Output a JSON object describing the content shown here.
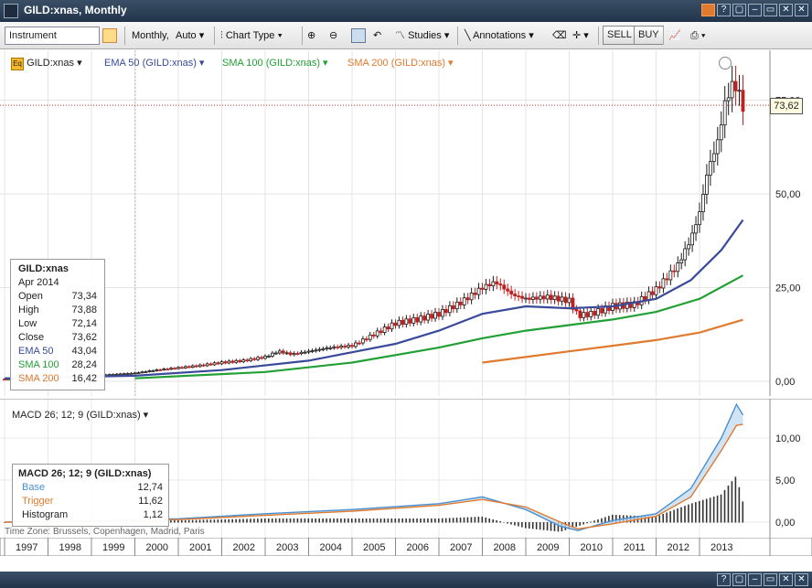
{
  "window": {
    "title": "GILD:xnas, Monthly"
  },
  "toolbar": {
    "instrument_placeholder": "Instrument",
    "period": "Monthly,",
    "scale": "Auto",
    "chart_type": "Chart Type",
    "studies": "Studies",
    "annotations": "Annotations",
    "sell": "SELL",
    "buy": "BUY"
  },
  "legend": {
    "symbol": "GILD:xnas",
    "ema": "EMA 50 (GILD:xnas)",
    "sma100": "SMA 100 (GILD:xnas)",
    "sma200": "SMA 200 (GILD:xnas)"
  },
  "info": {
    "title": "GILD:xnas",
    "date": "Apr 2014",
    "rows": [
      {
        "label": "Open",
        "value": "73,34"
      },
      {
        "label": "High",
        "value": "73,88"
      },
      {
        "label": "Low",
        "value": "72,14"
      },
      {
        "label": "Close",
        "value": "73,62"
      },
      {
        "label": "EMA 50",
        "value": "43,04"
      },
      {
        "label": "SMA 100",
        "value": "28,24"
      },
      {
        "label": "SMA 200",
        "value": "16,42"
      }
    ]
  },
  "price_tag": "73,62",
  "macd": {
    "label": "MACD 26; 12; 9 (GILD:xnas)",
    "title": "MACD 26; 12; 9 (GILD:xnas)",
    "rows": [
      {
        "label": "Base",
        "value": "12,74"
      },
      {
        "label": "Trigger",
        "value": "11,62"
      },
      {
        "label": "Histogram",
        "value": "1,12"
      }
    ]
  },
  "timezone": "Time Zone: Brussels, Copenhagen, Madrid, Paris",
  "colors": {
    "ema": "#3a4a9a",
    "sma100": "#22a035",
    "sma200": "#e07a2e",
    "base": "#4a8fd0",
    "trigger": "#e07a2e",
    "up": "#1a1a1a",
    "down": "#c02020"
  },
  "chart_data": {
    "type": "candlestick",
    "years": [
      "1997",
      "1998",
      "1999",
      "2000",
      "2001",
      "2002",
      "2003",
      "2004",
      "2005",
      "2006",
      "2007",
      "2008",
      "2009",
      "2010",
      "2011",
      "2012",
      "2013"
    ],
    "y_ticks": [
      "75,00",
      "50,00",
      "25,00",
      "0,00"
    ],
    "y_tick_values": [
      75,
      50,
      25,
      0
    ],
    "macd_ticks": [
      "10,00",
      "5,00",
      "0,00"
    ],
    "macd_tick_values": [
      10,
      5,
      0
    ],
    "price_points": [
      [
        1997.0,
        0.6
      ],
      [
        1998.0,
        1.0
      ],
      [
        1999.0,
        1.5
      ],
      [
        2000.0,
        2.2
      ],
      [
        2000.5,
        3.0
      ],
      [
        2001.0,
        3.6
      ],
      [
        2001.5,
        4.2
      ],
      [
        2002.0,
        5.0
      ],
      [
        2002.5,
        5.5
      ],
      [
        2003.0,
        6.5
      ],
      [
        2003.3,
        8.0
      ],
      [
        2003.6,
        7.2
      ],
      [
        2004.0,
        8.0
      ],
      [
        2004.5,
        9.0
      ],
      [
        2005.0,
        9.5
      ],
      [
        2005.5,
        12.5
      ],
      [
        2006.0,
        15.5
      ],
      [
        2006.5,
        16.5
      ],
      [
        2007.0,
        18.0
      ],
      [
        2007.5,
        21.0
      ],
      [
        2008.0,
        25.0
      ],
      [
        2008.3,
        26.5
      ],
      [
        2008.7,
        23.0
      ],
      [
        2009.0,
        22.0
      ],
      [
        2009.5,
        22.5
      ],
      [
        2010.0,
        21.5
      ],
      [
        2010.2,
        17.5
      ],
      [
        2010.5,
        18.0
      ],
      [
        2011.0,
        20.0
      ],
      [
        2011.5,
        20.5
      ],
      [
        2012.0,
        24.5
      ],
      [
        2012.5,
        31.0
      ],
      [
        2012.8,
        38.0
      ],
      [
        2013.0,
        45.0
      ],
      [
        2013.2,
        57.0
      ],
      [
        2013.4,
        63.0
      ],
      [
        2013.6,
        75.0
      ],
      [
        2013.8,
        80.0
      ],
      [
        2013.95,
        75.0
      ],
      [
        2014.0,
        73.62
      ]
    ],
    "ema50": [
      [
        1997.0,
        0.8
      ],
      [
        2000.0,
        1.5
      ],
      [
        2002.0,
        3.0
      ],
      [
        2004.0,
        5.5
      ],
      [
        2006.0,
        10.0
      ],
      [
        2007.0,
        13.5
      ],
      [
        2008.0,
        18.0
      ],
      [
        2009.0,
        20.0
      ],
      [
        2010.0,
        19.5
      ],
      [
        2011.0,
        20.0
      ],
      [
        2012.0,
        22.0
      ],
      [
        2012.8,
        27.0
      ],
      [
        2013.5,
        35.0
      ],
      [
        2014.0,
        43.04
      ]
    ],
    "sma100": [
      [
        2000.0,
        0.8
      ],
      [
        2003.0,
        2.5
      ],
      [
        2005.0,
        5.0
      ],
      [
        2007.0,
        9.0
      ],
      [
        2008.0,
        11.5
      ],
      [
        2009.0,
        13.5
      ],
      [
        2010.0,
        15.0
      ],
      [
        2011.0,
        16.5
      ],
      [
        2012.0,
        18.5
      ],
      [
        2013.0,
        22.0
      ],
      [
        2014.0,
        28.24
      ]
    ],
    "sma200": [
      [
        2008.0,
        5.0
      ],
      [
        2009.0,
        6.5
      ],
      [
        2010.0,
        8.0
      ],
      [
        2011.0,
        9.5
      ],
      [
        2012.0,
        11.0
      ],
      [
        2013.0,
        13.0
      ],
      [
        2014.0,
        16.42
      ]
    ],
    "macd_base": [
      [
        1997.0,
        0
      ],
      [
        2001.0,
        0.4
      ],
      [
        2003.0,
        1.0
      ],
      [
        2005.0,
        1.5
      ],
      [
        2007.0,
        2.2
      ],
      [
        2008.0,
        3.0
      ],
      [
        2009.0,
        1.5
      ],
      [
        2009.8,
        -0.5
      ],
      [
        2010.2,
        -1.0
      ],
      [
        2011.0,
        0.2
      ],
      [
        2012.0,
        1.0
      ],
      [
        2012.8,
        4.0
      ],
      [
        2013.5,
        10.0
      ],
      [
        2013.85,
        14.0
      ],
      [
        2014.0,
        12.74
      ]
    ],
    "macd_trigger": [
      [
        1997.0,
        0
      ],
      [
        2001.0,
        0.3
      ],
      [
        2003.0,
        0.8
      ],
      [
        2005.0,
        1.3
      ],
      [
        2007.0,
        2.0
      ],
      [
        2008.0,
        2.7
      ],
      [
        2009.0,
        1.8
      ],
      [
        2009.8,
        0.0
      ],
      [
        2010.2,
        -0.8
      ],
      [
        2011.0,
        -0.2
      ],
      [
        2012.0,
        0.7
      ],
      [
        2012.8,
        3.0
      ],
      [
        2013.5,
        8.5
      ],
      [
        2013.85,
        11.5
      ],
      [
        2014.0,
        11.62
      ]
    ]
  }
}
